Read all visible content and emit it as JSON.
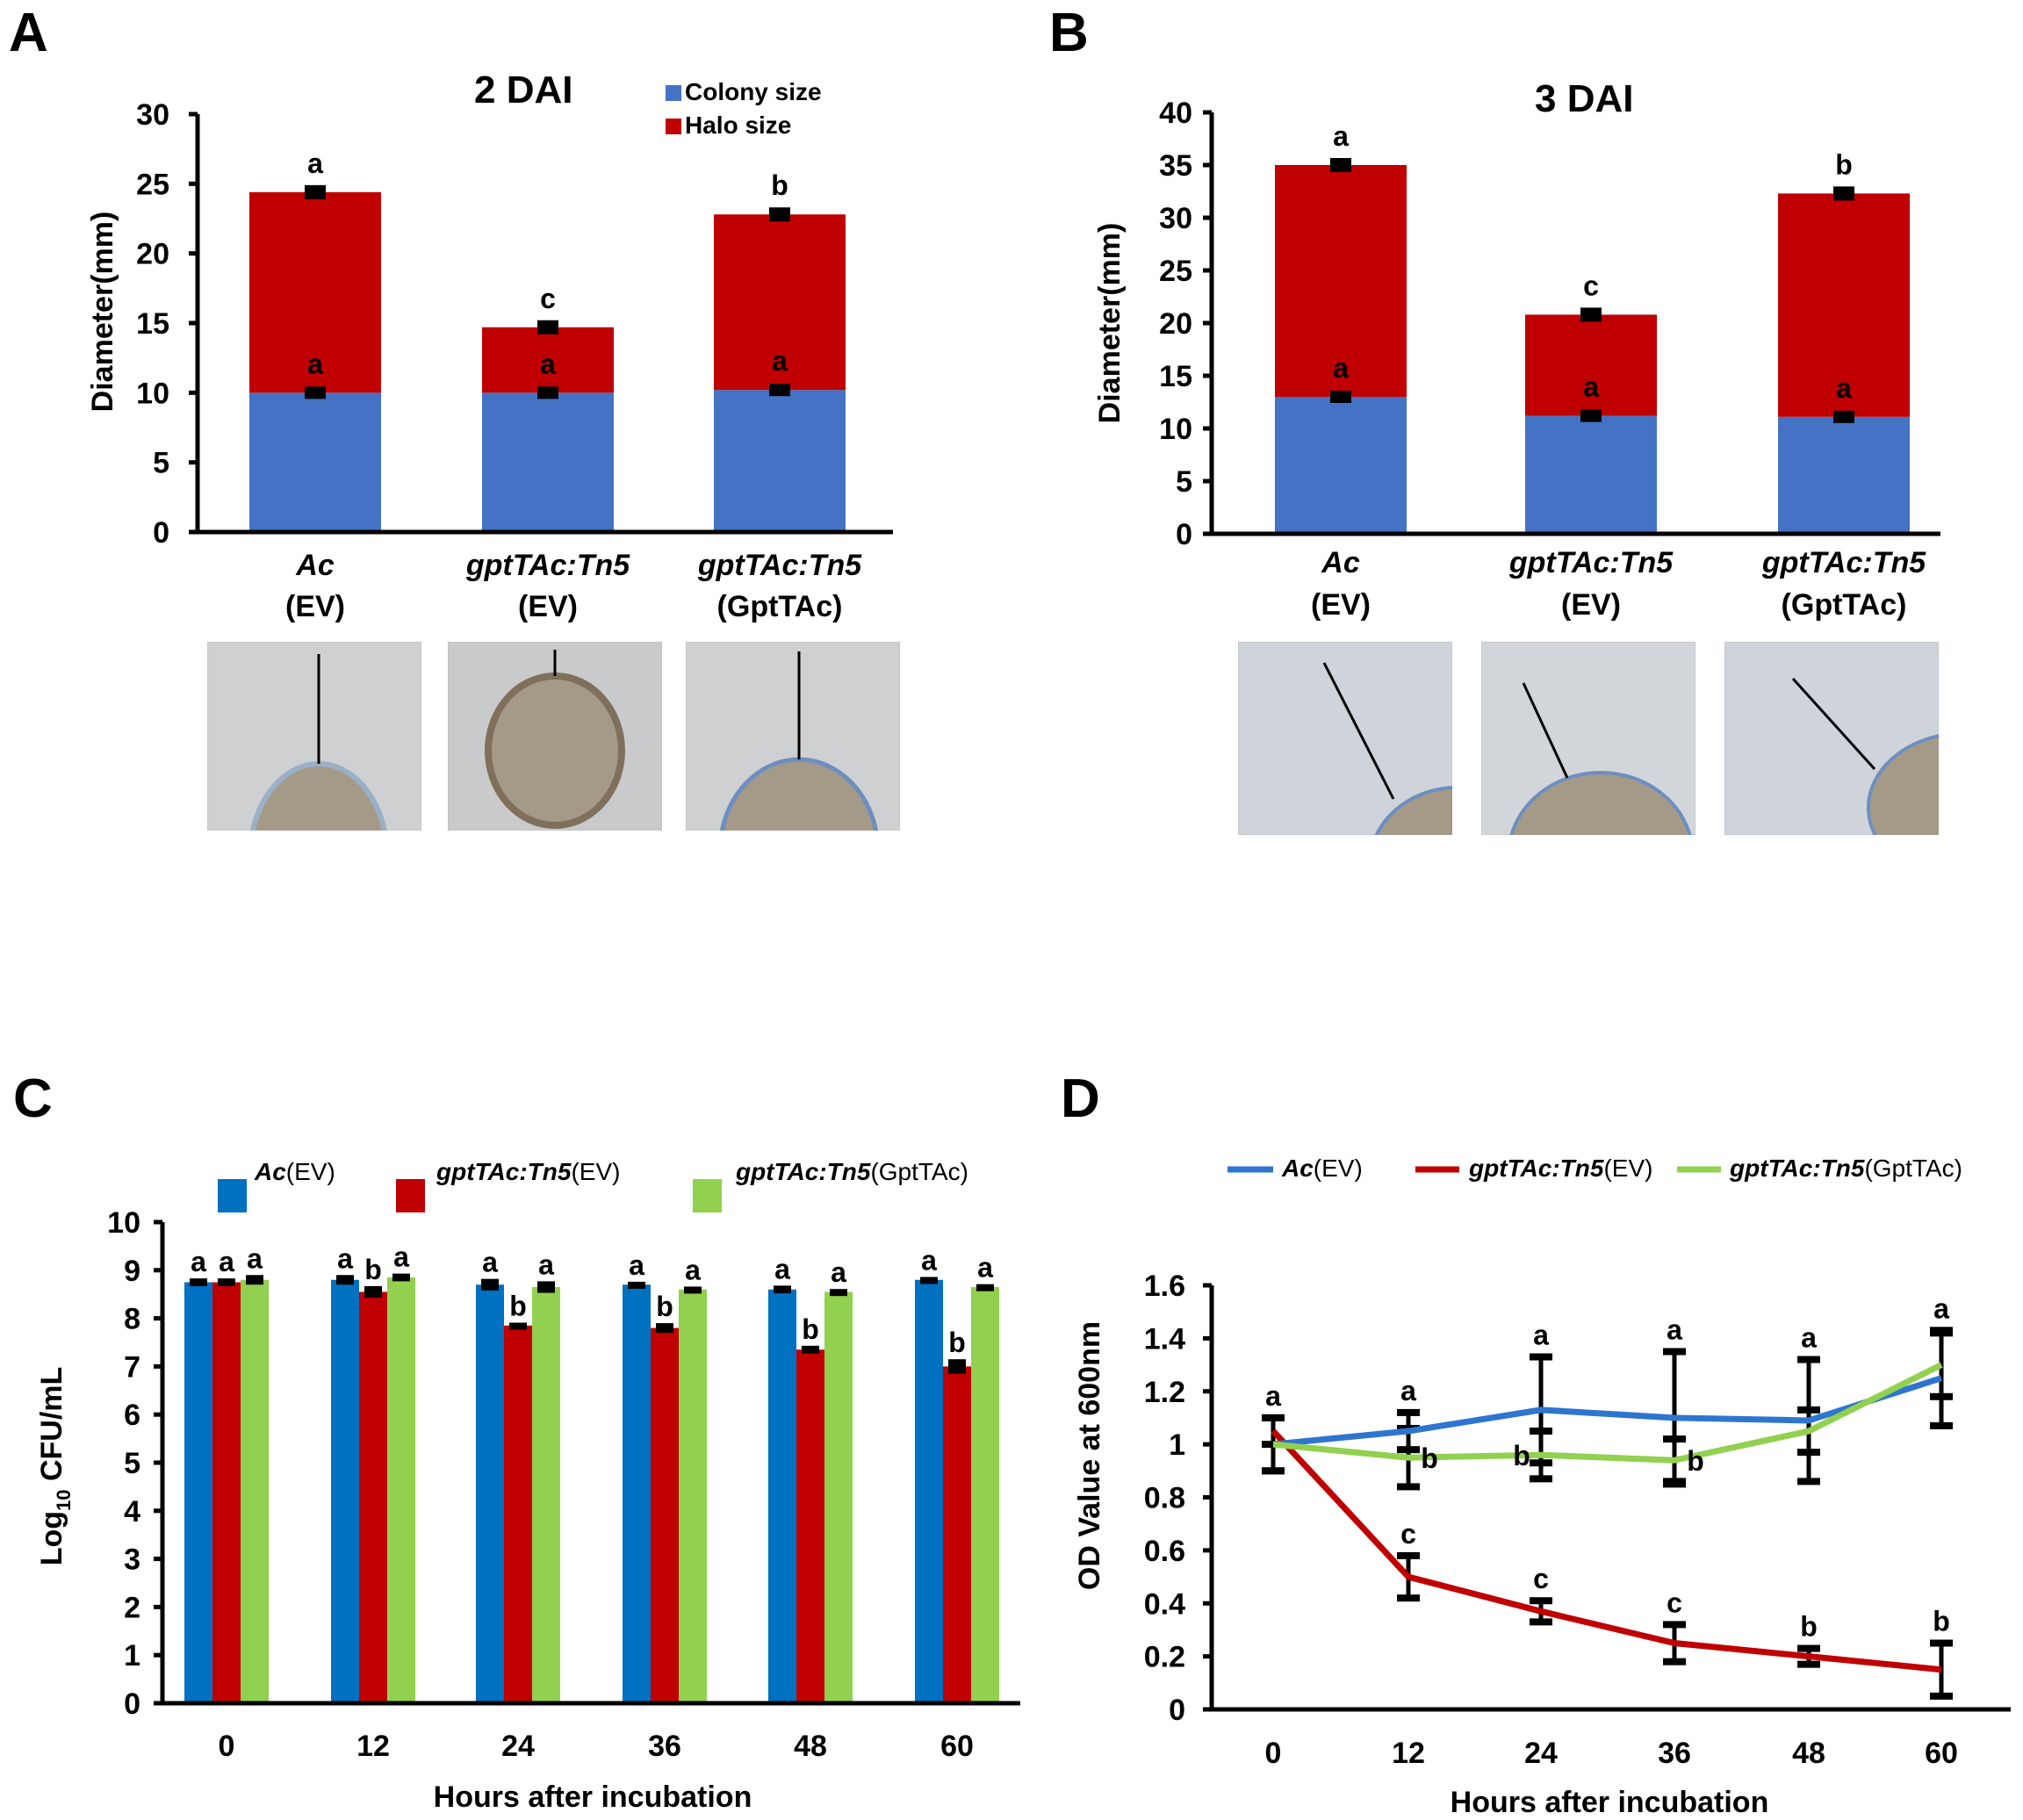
{
  "panels": {
    "A": "A",
    "B": "B",
    "C": "C",
    "D": "D"
  },
  "colors": {
    "colony": "#4472C4",
    "halo": "#C00000",
    "ac": "#0070C0",
    "mut": "#C00000",
    "comp": "#92D050",
    "line_ac": "#2E75D0",
    "line_mut": "#C00000",
    "line_comp": "#92D050"
  },
  "chart_data": [
    {
      "id": "A",
      "type": "bar",
      "stacked": true,
      "title": "2 DAI",
      "ylabel": "Diameter(mm)",
      "ylim": [
        0,
        30
      ],
      "yticks": [
        0,
        5,
        10,
        15,
        20,
        25,
        30
      ],
      "categories": [
        {
          "line1": "Ac",
          "line2": "(EV)"
        },
        {
          "line1": "gptTAc:Tn5",
          "line2": "(EV)"
        },
        {
          "line1": "gptTAc:Tn5",
          "line2": "(GptTAc)"
        }
      ],
      "legend": [
        "Colony size",
        "Halo size"
      ],
      "series": [
        {
          "name": "Colony size",
          "values": [
            10.0,
            10.0,
            10.2
          ],
          "errors": [
            0.3,
            0.3,
            0.4
          ],
          "letters": [
            "a",
            "a",
            "a"
          ]
        },
        {
          "name": "Halo size",
          "values": [
            14.4,
            4.7,
            12.6
          ],
          "totals": [
            24.4,
            14.7,
            22.8
          ],
          "errors": [
            0.4,
            0.4,
            0.5
          ],
          "letters": [
            "a",
            "c",
            "b"
          ]
        }
      ]
    },
    {
      "id": "B",
      "type": "bar",
      "stacked": true,
      "title": "3 DAI",
      "ylabel": "Diameter(mm)",
      "ylim": [
        0,
        40
      ],
      "yticks": [
        0,
        5,
        10,
        15,
        20,
        25,
        30,
        35,
        40
      ],
      "categories": [
        {
          "line1": "Ac",
          "line2": "(EV)"
        },
        {
          "line1": "gptTAc:Tn5",
          "line2": "(EV)"
        },
        {
          "line1": "gptTAc:Tn5",
          "line2": "(GptTAc)"
        }
      ],
      "series": [
        {
          "name": "Colony size",
          "values": [
            13.0,
            11.2,
            11.1
          ],
          "errors": [
            0.6,
            0.6,
            0.7
          ],
          "letters": [
            "a",
            "a",
            "a"
          ]
        },
        {
          "name": "Halo size",
          "values": [
            22.0,
            9.6,
            21.2
          ],
          "totals": [
            35.0,
            20.8,
            32.3
          ],
          "errors": [
            0.6,
            0.4,
            0.6
          ],
          "letters": [
            "a",
            "c",
            "b"
          ]
        }
      ]
    },
    {
      "id": "C",
      "type": "bar",
      "stacked": false,
      "ylabel_main": "Log",
      "ylabel_sub": "10",
      "ylabel_rest": " CFU/mL",
      "xlabel": "Hours after incubation",
      "ylim": [
        0,
        10
      ],
      "yticks": [
        0,
        1,
        2,
        3,
        4,
        5,
        6,
        7,
        8,
        9,
        10
      ],
      "categories": [
        "0",
        "12",
        "24",
        "36",
        "48",
        "60"
      ],
      "series": [
        {
          "name": "Ac(EV)",
          "name_italic": "Ac",
          "name_rest": "(EV)",
          "values": [
            8.75,
            8.8,
            8.7,
            8.7,
            8.6,
            8.8
          ],
          "errors": [
            0.08,
            0.1,
            0.12,
            0.06,
            0.08,
            0.06
          ],
          "letters": [
            "a",
            "a",
            "a",
            "a",
            "a",
            "a"
          ]
        },
        {
          "name": "gptTAc:Tn5(EV)",
          "name_italic": "gptTAc:Tn5",
          "name_rest": "(EV)",
          "values": [
            8.75,
            8.55,
            7.85,
            7.8,
            7.35,
            7.0
          ],
          "errors": [
            0.08,
            0.12,
            0.06,
            0.1,
            0.08,
            0.15
          ],
          "letters": [
            "a",
            "b",
            "b",
            "b",
            "b",
            "b"
          ]
        },
        {
          "name": "gptTAc:Tn5(GptTAc)",
          "name_italic": "gptTAc:Tn5",
          "name_rest": "(GptTAc)",
          "values": [
            8.8,
            8.85,
            8.65,
            8.6,
            8.55,
            8.65
          ],
          "errors": [
            0.1,
            0.08,
            0.12,
            0.06,
            0.06,
            0.06
          ],
          "letters": [
            "a",
            "a",
            "a",
            "a",
            "a",
            "a"
          ]
        }
      ]
    },
    {
      "id": "D",
      "type": "line",
      "ylabel": "OD Value at 600nm",
      "xlabel": "Hours after incubation",
      "ylim": [
        0,
        1.6
      ],
      "yticks": [
        "0",
        "0.2",
        "0.4",
        "0.6",
        "0.8",
        "1",
        "1.2",
        "1.4",
        "1.6"
      ],
      "x": [
        "0",
        "12",
        "24",
        "36",
        "48",
        "60"
      ],
      "series": [
        {
          "name": "Ac(EV)",
          "name_italic": "Ac",
          "name_rest": "(EV)",
          "values": [
            1.0,
            1.05,
            1.13,
            1.1,
            1.09,
            1.25
          ],
          "errors": [
            0.1,
            0.07,
            0.2,
            0.25,
            0.23,
            0.18
          ],
          "letters": [
            "a",
            "a",
            "a",
            "a",
            "a",
            "a"
          ]
        },
        {
          "name": "gptTAc:Tn5(EV)",
          "name_italic": "gptTAc:Tn5",
          "name_rest": "(EV)",
          "values": [
            1.05,
            0.5,
            0.37,
            0.25,
            0.2,
            0.15
          ],
          "errors": [
            0.05,
            0.08,
            0.04,
            0.07,
            0.03,
            0.1
          ],
          "letters": [
            "",
            "c",
            "c",
            "c",
            "b",
            "b"
          ]
        },
        {
          "name": "gptTAc:Tn5(GptTAc)",
          "name_italic": "gptTAc:Tn5",
          "name_rest": "(GptTAc)",
          "values": [
            1.0,
            0.95,
            0.96,
            0.94,
            1.05,
            1.3
          ],
          "errors": [
            0.1,
            0.11,
            0.09,
            0.08,
            0.08,
            0.12
          ],
          "letters": [
            "",
            "b",
            "b",
            "b",
            "",
            ""
          ]
        }
      ]
    }
  ]
}
